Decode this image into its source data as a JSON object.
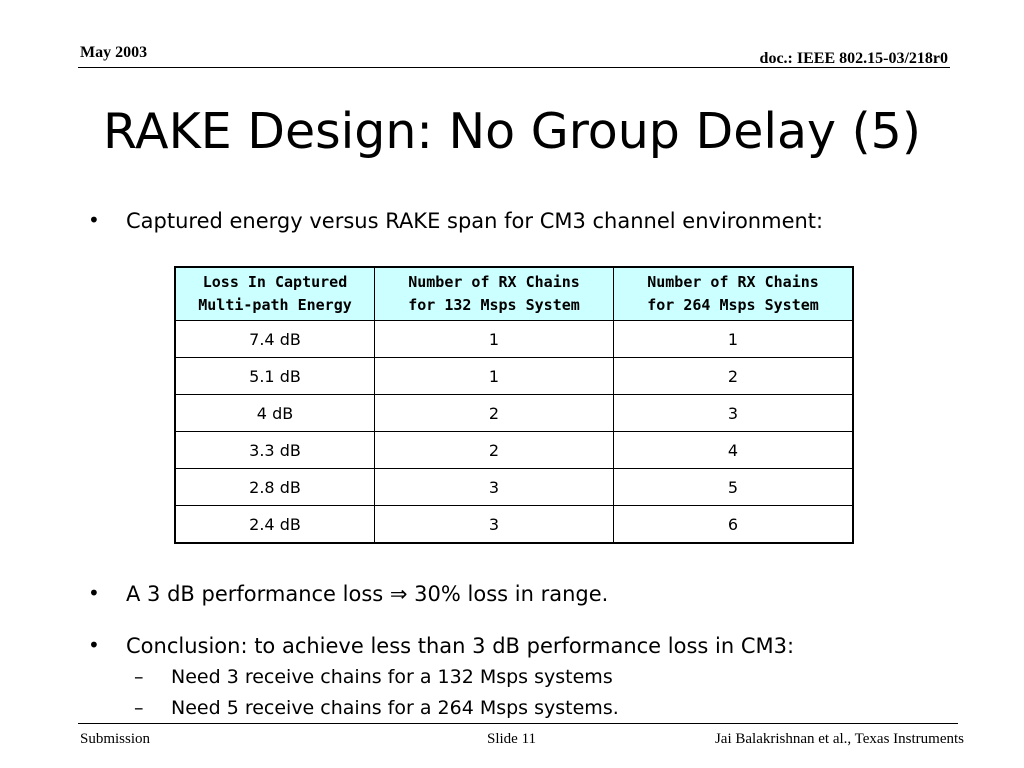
{
  "header": {
    "date": "May 2003",
    "doc_id": "doc.: IEEE 802.15-03/218r0"
  },
  "slide": {
    "title": "RAKE Design: No Group Delay (5)",
    "bullets": [
      {
        "marker": "•",
        "text": "Captured energy versus RAKE span for CM3 channel environment:"
      },
      {
        "marker": "•",
        "text": "A 3 dB performance loss ⇒ 30% loss in range."
      },
      {
        "marker": "•",
        "text": "Conclusion: to achieve less than 3 dB performance loss in CM3:"
      }
    ],
    "sub_bullets": [
      {
        "marker": "–",
        "text": "Need 3 receive chains for a 132 Msps systems"
      },
      {
        "marker": "–",
        "text": "Need 5 receive chains for a 264 Msps systems."
      }
    ]
  },
  "table": {
    "headers": [
      [
        "Loss In Captured",
        "Multi-path Energy"
      ],
      [
        "Number of RX Chains",
        "for 132 Msps System"
      ],
      [
        "Number of RX Chains",
        "for 264 Msps System"
      ]
    ],
    "rows": [
      [
        "7.4 dB",
        "1",
        "1"
      ],
      [
        "5.1 dB",
        "1",
        "2"
      ],
      [
        "4 dB",
        "2",
        "3"
      ],
      [
        "3.3 dB",
        "2",
        "4"
      ],
      [
        "2.8 dB",
        "3",
        "5"
      ],
      [
        "2.4 dB",
        "3",
        "6"
      ]
    ],
    "header_color": "#ccffff"
  },
  "footer": {
    "left": "Submission",
    "center": "Slide 11",
    "right": "Jai Balakrishnan et al., Texas Instruments"
  }
}
